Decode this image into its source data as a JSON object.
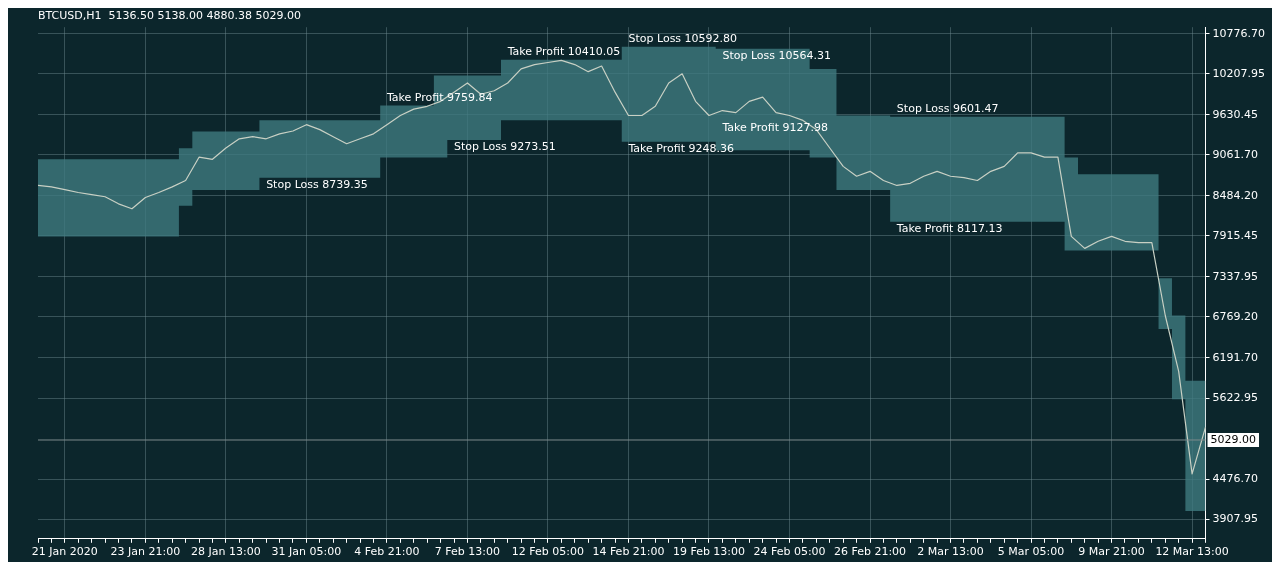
{
  "chart_data": {
    "type": "line",
    "title": "BTCUSD,H1  5136.50 5138.00 4880.38 5029.00",
    "categories": [
      null,
      null,
      "21 Jan 2020",
      null,
      null,
      null,
      null,
      null,
      "23 Jan 21:00",
      null,
      null,
      null,
      null,
      null,
      "28 Jan 13:00",
      null,
      null,
      null,
      null,
      null,
      "31 Jan 05:00",
      null,
      null,
      null,
      null,
      null,
      "4 Feb 21:00",
      null,
      null,
      null,
      null,
      null,
      "7 Feb 13:00",
      null,
      null,
      null,
      null,
      null,
      "12 Feb 05:00",
      null,
      null,
      null,
      null,
      null,
      "14 Feb 21:00",
      null,
      null,
      null,
      null,
      null,
      "19 Feb 13:00",
      null,
      null,
      null,
      null,
      null,
      "24 Feb 05:00",
      null,
      null,
      null,
      null,
      null,
      "26 Feb 21:00",
      null,
      null,
      null,
      null,
      null,
      "2 Mar 13:00",
      null,
      null,
      null,
      null,
      null,
      "5 Mar 05:00",
      null,
      null,
      null,
      null,
      null,
      "9 Mar 21:00",
      null,
      null,
      null,
      null,
      null,
      "12 Mar 13:00",
      null
    ],
    "series": [
      {
        "color": "#c8d0c4",
        "values": [
          8630,
          8610,
          8570,
          8530,
          8500,
          8470,
          8370,
          8300,
          8460,
          8530,
          8610,
          8700,
          9030,
          9000,
          9160,
          9290,
          9320,
          9290,
          9360,
          9400,
          9490,
          9420,
          9320,
          9220,
          9290,
          9360,
          9490,
          9620,
          9710,
          9750,
          9820,
          9950,
          10080,
          9920,
          9970,
          10080,
          10280,
          10340,
          10370,
          10400,
          10340,
          10240,
          10320,
          9950,
          9620,
          9620,
          9750,
          10080,
          10210,
          9820,
          9620,
          9690,
          9660,
          9820,
          9880,
          9660,
          9620,
          9550,
          9420,
          9160,
          8900,
          8760,
          8830,
          8700,
          8630,
          8660,
          8760,
          8830,
          8760,
          8740,
          8700,
          8830,
          8900,
          9090,
          9090,
          9030,
          9030,
          7910,
          7740,
          7840,
          7910,
          7840,
          7820,
          7820,
          6790,
          6000,
          4550,
          5210
        ],
        "upper": [
          9000,
          9000,
          9000,
          9000,
          9000,
          9000,
          9000,
          9000,
          9000,
          9000,
          9000,
          9158,
          9395,
          9395,
          9395,
          9395,
          9395,
          9553,
          9553,
          9553,
          9553,
          9553,
          9553,
          9553,
          9553,
          9553,
          9759.84,
          9759.84,
          9759.84,
          9759.84,
          10185,
          10185,
          10185,
          10185,
          10185,
          10410.05,
          10410.05,
          10410.05,
          10410.05,
          10410.05,
          10410.05,
          10410.05,
          10410.05,
          10410.05,
          10592.8,
          10592.8,
          10592.8,
          10592.8,
          10592.8,
          10592.8,
          10592.8,
          10564.31,
          10564.31,
          10564.31,
          10564.31,
          10564.31,
          10564.31,
          10564.31,
          10277,
          10277,
          9619,
          9619,
          9619,
          9619,
          9601.47,
          9601.47,
          9601.47,
          9601.47,
          9601.47,
          9601.47,
          9601.47,
          9601.47,
          9601.47,
          9601.47,
          9601.47,
          9601.47,
          9601.47,
          9027,
          8790,
          8790,
          8790,
          8790,
          8790,
          8790,
          7316,
          6789,
          5868,
          5868
        ],
        "lower": [
          7908,
          7908,
          7908,
          7908,
          7908,
          7908,
          7908,
          7908,
          7908,
          7908,
          7908,
          8342,
          8566,
          8566,
          8566,
          8566,
          8566,
          8739.35,
          8739.35,
          8739.35,
          8739.35,
          8739.35,
          8739.35,
          8739.35,
          8739.35,
          8739.35,
          9027,
          9027,
          9027,
          9027,
          9027,
          9273.51,
          9273.51,
          9273.51,
          9273.51,
          9553,
          9553,
          9553,
          9553,
          9553,
          9553,
          9553,
          9553,
          9553,
          9248.36,
          9248.36,
          9248.36,
          9248.36,
          9248.36,
          9248.36,
          9248.36,
          9127.98,
          9127.98,
          9127.98,
          9127.98,
          9127.98,
          9127.98,
          9127.98,
          9027,
          9027,
          8566,
          8566,
          8566,
          8566,
          8117.13,
          8117.13,
          8117.13,
          8117.13,
          8117.13,
          8117.13,
          8117.13,
          8117.13,
          8117.13,
          8117.13,
          8117.13,
          8117.13,
          8117.13,
          7711,
          7711,
          7711,
          7711,
          7711,
          7711,
          7711,
          6600,
          5605,
          4026,
          4026
        ]
      }
    ],
    "ylim": [
      3631,
      10869
    ],
    "yticks": [
      {
        "value": 3907.95,
        "label": "3907.95"
      },
      {
        "value": 4476.7,
        "label": "4476.70"
      },
      {
        "value": 5622.95,
        "label": "5622.95"
      },
      {
        "value": 6191.7,
        "label": "6191.70"
      },
      {
        "value": 6769.2,
        "label": "6769.20"
      },
      {
        "value": 7337.95,
        "label": "7337.95"
      },
      {
        "value": 7915.45,
        "label": "7915.45"
      },
      {
        "value": 8484.2,
        "label": "8484.20"
      },
      {
        "value": 9061.7,
        "label": "9061.70"
      },
      {
        "value": 9630.45,
        "label": "9630.45"
      },
      {
        "value": 10207.95,
        "label": "10207.95"
      },
      {
        "value": 10776.7,
        "label": "10776.70"
      }
    ],
    "ref_lines": [
      {
        "axis": "y",
        "value": 5029.0,
        "label": "5029.00",
        "color": "#7d8a8c"
      }
    ],
    "annotations": [
      {
        "text": "Take Profit 10410.05",
        "y": 10410.05
      },
      {
        "text": "Take Profit 9759.84",
        "y": 9759.84
      },
      {
        "text": "Stop Loss 9273.51",
        "y": 9273.51
      },
      {
        "text": "Stop Loss 8739.35",
        "y": 8739.35
      },
      {
        "text": "Stop Loss 10592.80",
        "y": 10592.8
      },
      {
        "text": "Take Profit 9248.36",
        "y": 9248.36
      },
      {
        "text": "Stop Loss 10564.31",
        "y": 10564.31
      },
      {
        "text": "Take Profit 9127.98",
        "y": 9127.98
      },
      {
        "text": "Stop Loss 9601.47",
        "y": 9601.47
      },
      {
        "text": "Take Profit 8117.13",
        "y": 8117.13
      }
    ],
    "grid": true,
    "line_style": "solid",
    "marker": "none",
    "legend": false
  }
}
